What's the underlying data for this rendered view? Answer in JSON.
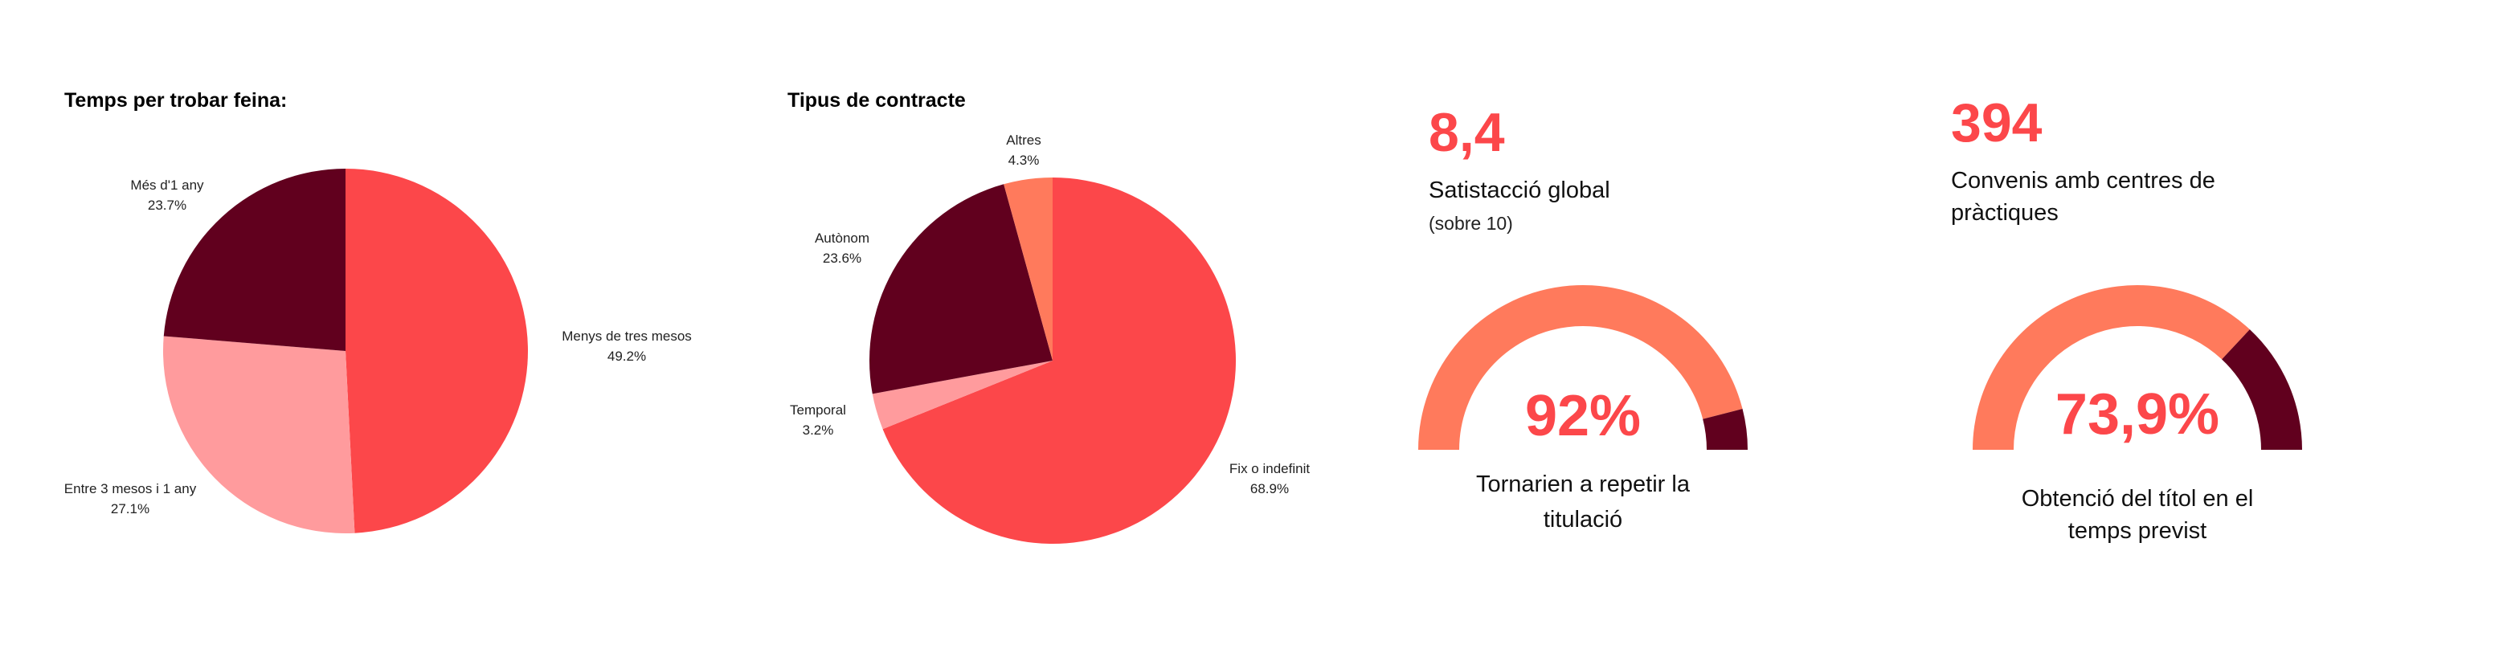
{
  "colors": {
    "red": "#fc474a",
    "maroon": "#61001e",
    "pink": "#ff9b9d",
    "coral": "#ff7a5c"
  },
  "chart_data": [
    {
      "type": "pie",
      "title": "Temps per trobar feina:",
      "slices": [
        {
          "label": "Menys de tres mesos",
          "value_label": "49.2%",
          "value": 49.2,
          "color": "#fc474a"
        },
        {
          "label": "Entre 3 mesos i 1 any",
          "value_label": "27.1%",
          "value": 27.1,
          "color": "#ff9b9d"
        },
        {
          "label": "Més d'1 any",
          "value_label": "23.7%",
          "value": 23.7,
          "color": "#61001e"
        }
      ]
    },
    {
      "type": "pie",
      "title": "Tipus de contracte",
      "slices": [
        {
          "label": "Fix o indefinit",
          "value_label": "68.9%",
          "value": 68.9,
          "color": "#fc474a"
        },
        {
          "label": "Temporal",
          "value_label": "3.2%",
          "value": 3.2,
          "color": "#ff9b9d"
        },
        {
          "label": "Autònom",
          "value_label": "23.6%",
          "value": 23.6,
          "color": "#61001e"
        },
        {
          "label": "Altres",
          "value_label": "4.3%",
          "value": 4.3,
          "color": "#ff7a5c"
        }
      ]
    },
    {
      "type": "gauge",
      "value": 92,
      "value_label": "92%",
      "caption": [
        "Tornarien a repetir la",
        "titulació"
      ],
      "colors": {
        "filled": "#ff7a5c",
        "rest": "#61001e"
      }
    },
    {
      "type": "gauge",
      "value": 73.9,
      "value_label": "73,9%",
      "caption": [
        "Obtenció del títol en el",
        "temps previst"
      ],
      "colors": {
        "filled": "#ff7a5c",
        "rest": "#61001e"
      }
    }
  ],
  "kpis": [
    {
      "value": "8,4",
      "label": [
        "Satistacció global"
      ],
      "note": "(sobre 10)"
    },
    {
      "value": "394",
      "label": [
        "Convenis amb centres de",
        "pràctiques"
      ]
    }
  ]
}
